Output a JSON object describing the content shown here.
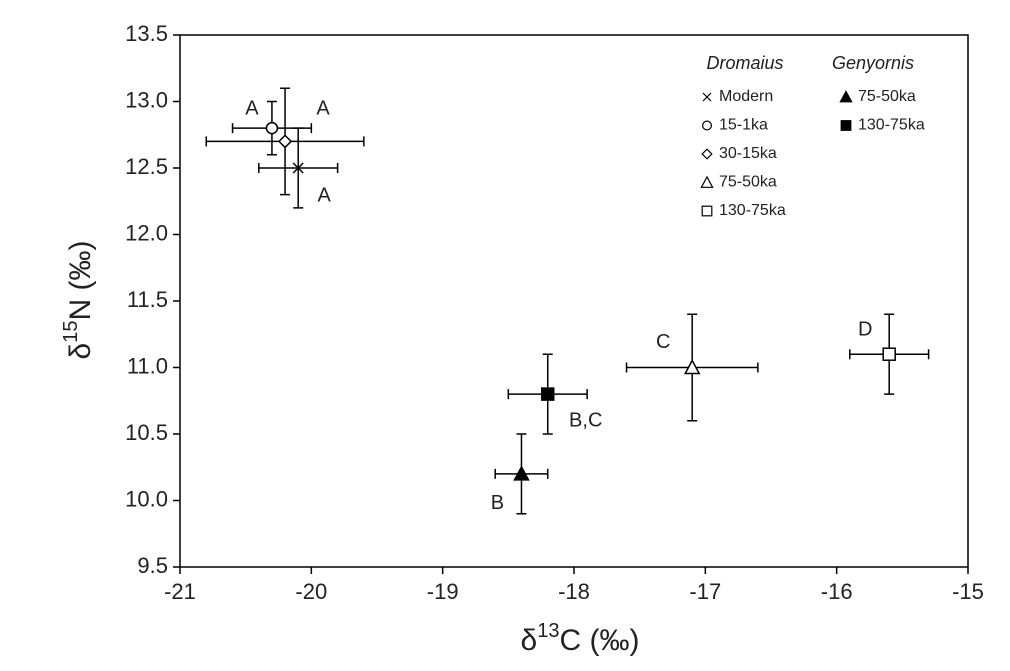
{
  "chart_data": {
    "type": "scatter",
    "x_label": {
      "prefix": "δ",
      "sup": "13",
      "suffix": "C (‰)"
    },
    "y_label": {
      "prefix": "δ",
      "sup": "15",
      "suffix": "N (‰)"
    },
    "xlim": [
      -21,
      -15
    ],
    "xticks": [
      -21,
      -20,
      -19,
      -18,
      -17,
      -16,
      -15
    ],
    "ylim": [
      9.5,
      13.5
    ],
    "yticks": [
      9.5,
      {
        "value": 10,
        "label": "10.0"
      },
      10.5,
      {
        "value": 11,
        "label": "11.0"
      },
      11.5,
      {
        "value": 12,
        "label": "12.0"
      },
      12.5,
      {
        "value": 13,
        "label": "13.0"
      },
      13.5
    ],
    "groups": [
      "Dromaius",
      "Genyornis"
    ],
    "series": [
      {
        "name": "Modern",
        "group": 0,
        "marker": "x",
        "filled": false,
        "color": "#000000",
        "x": [
          -20.1
        ],
        "values": [
          12.5
        ],
        "xerr": [
          0.3
        ],
        "yerr": [
          0.3
        ]
      },
      {
        "name": "15-1ka",
        "group": 0,
        "marker": "o",
        "filled": false,
        "color": "#000000",
        "x": [
          -20.3
        ],
        "values": [
          12.8
        ],
        "xerr": [
          0.3
        ],
        "yerr": [
          0.2
        ]
      },
      {
        "name": "30-15ka",
        "group": 0,
        "marker": "D",
        "filled": false,
        "color": "#000000",
        "x": [
          -20.2
        ],
        "values": [
          12.7
        ],
        "xerr": [
          0.6
        ],
        "yerr": [
          0.4
        ]
      },
      {
        "name": "75-50ka",
        "group": 0,
        "marker": "^",
        "filled": false,
        "color": "#000000",
        "x": [
          -17.1
        ],
        "values": [
          11.0
        ],
        "xerr": [
          0.5
        ],
        "yerr": [
          0.4
        ]
      },
      {
        "name": "130-75ka",
        "group": 0,
        "marker": "s",
        "filled": false,
        "color": "#000000",
        "x": [
          -15.6
        ],
        "values": [
          11.1
        ],
        "xerr": [
          0.3
        ],
        "yerr": [
          0.3
        ]
      },
      {
        "name": "75-50ka",
        "group": 1,
        "marker": "^",
        "filled": true,
        "color": "#000000",
        "x": [
          -18.4
        ],
        "values": [
          10.2
        ],
        "xerr": [
          0.2
        ],
        "yerr": [
          0.3
        ]
      },
      {
        "name": "130-75ka",
        "group": 1,
        "marker": "s",
        "filled": true,
        "color": "#000000",
        "x": [
          -18.2
        ],
        "values": [
          10.8
        ],
        "xerr": [
          0.3
        ],
        "yerr": [
          0.3
        ]
      }
    ],
    "annotations": [
      {
        "text": "A",
        "series": 1
      },
      {
        "text": "A",
        "series": 2
      },
      {
        "text": "A",
        "series": 0
      },
      {
        "text": "B",
        "series": 5
      },
      {
        "text": "B,C",
        "series": 6
      },
      {
        "text": "C",
        "series": 3
      },
      {
        "text": "D",
        "series": 4
      }
    ]
  }
}
